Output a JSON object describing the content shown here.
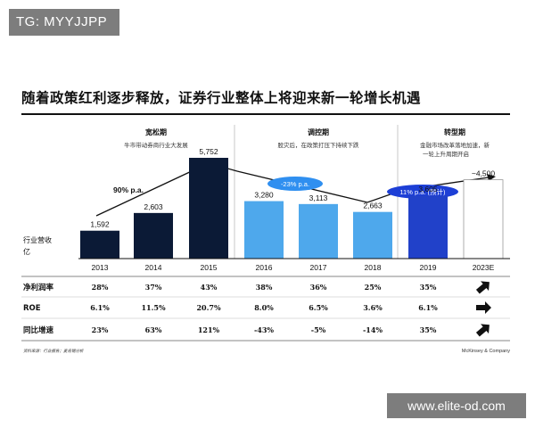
{
  "watermark_top": "TG: MYYJJPP",
  "watermark_bottom": "www.elite-od.com",
  "title": "随着政策红利逐步释放，证券行业整体上将迎来新一轮增长机遇",
  "y_label": "行业营收（亿）",
  "phases": [
    {
      "title": "宽松期",
      "desc": [
        "牛市带动券商行业大发展"
      ]
    },
    {
      "title": "调控期",
      "desc": [
        "股灾后，在政策打压下持续下跌"
      ]
    },
    {
      "title": "转型期",
      "desc": [
        "金融市场改革落地加速，新",
        "一轮上升周期开启"
      ]
    }
  ],
  "growth_labels": {
    "phase1": "90% p.a.",
    "phase2": "-23% p.a.",
    "phase3": "11% p.a. (预计)"
  },
  "colors": {
    "navy": "#0b1a36",
    "light_blue": "#4ea8ec",
    "royal": "#2141c9",
    "bubble_blue": "#2f8ff0",
    "bubble_royal": "#1d3fd6"
  },
  "chart_data": {
    "type": "bar",
    "categories": [
      "2013",
      "2014",
      "2015",
      "2016",
      "2017",
      "2018",
      "2019",
      "2023E"
    ],
    "values": [
      1592,
      2603,
      5752,
      3280,
      3113,
      2663,
      3605,
      4500
    ],
    "value_labels": [
      "1,592",
      "2,603",
      "5,752",
      "3,280",
      "3,113",
      "2,663",
      "3,605",
      "~4,500"
    ],
    "ylabel": "行业营收（亿）",
    "ylim": [
      0,
      6200
    ],
    "grid": false
  },
  "table": {
    "rows": [
      {
        "label": "净利润率",
        "cells": [
          "28%",
          "37%",
          "43%",
          "38%",
          "36%",
          "25%",
          "35%"
        ],
        "trend": "up-right"
      },
      {
        "label": "ROE",
        "cells": [
          "6.1%",
          "11.5%",
          "20.7%",
          "8.0%",
          "6.5%",
          "3.6%",
          "6.1%"
        ],
        "trend": "right"
      },
      {
        "label": "同比增速",
        "cells": [
          "23%",
          "63%",
          "121%",
          "-43%",
          "-5%",
          "-14%",
          "35%"
        ],
        "trend": "up-right"
      }
    ]
  },
  "source": "资料来源：行业报告；麦肯锡分析",
  "brand": "McKinsey & Company"
}
